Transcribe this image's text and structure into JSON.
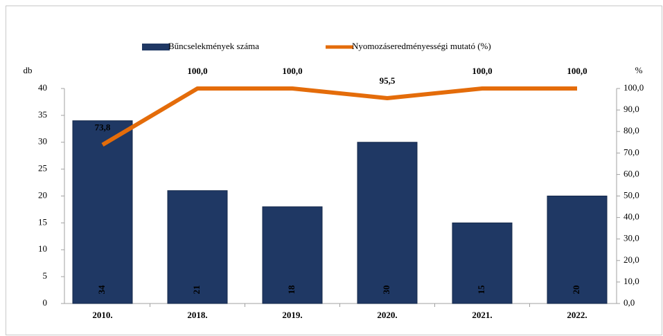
{
  "chart_data": {
    "type": "bar",
    "categories": [
      "2010.",
      "2018.",
      "2019.",
      "2020.",
      "2021.",
      "2022."
    ],
    "y_label": "db",
    "y2_label": "%",
    "ylim": [
      0,
      40
    ],
    "yticks": [
      0,
      5,
      10,
      15,
      20,
      25,
      30,
      35,
      40
    ],
    "y2lim": [
      0,
      100
    ],
    "y2ticks": [
      {
        "value": 0,
        "label": "0,0"
      },
      {
        "value": 10,
        "label": "10,0"
      },
      {
        "value": 20,
        "label": "20,0"
      },
      {
        "value": 30,
        "label": "30,0"
      },
      {
        "value": 40,
        "label": "40,0"
      },
      {
        "value": 50,
        "label": "50,0"
      },
      {
        "value": 60,
        "label": "60,0"
      },
      {
        "value": 70,
        "label": "70,0"
      },
      {
        "value": 80,
        "label": "80,0"
      },
      {
        "value": 90,
        "label": "90,0"
      },
      {
        "value": 100,
        "label": "100,0"
      }
    ],
    "legend": "top",
    "series": [
      {
        "name": "Bűncselekmények száma",
        "type": "bar",
        "color": "#1f3864",
        "values": [
          34,
          21,
          18,
          30,
          15,
          20
        ]
      },
      {
        "name": "Nyomozáseredményességi mutató (%)",
        "type": "line",
        "axis": "y2",
        "color": "#e46c0a",
        "values": [
          73.8,
          100,
          100,
          95.5,
          100,
          100
        ],
        "value_labels": [
          "73,8",
          "100,0",
          "100,0",
          "95,5",
          "100,0",
          "100,0"
        ]
      }
    ]
  }
}
